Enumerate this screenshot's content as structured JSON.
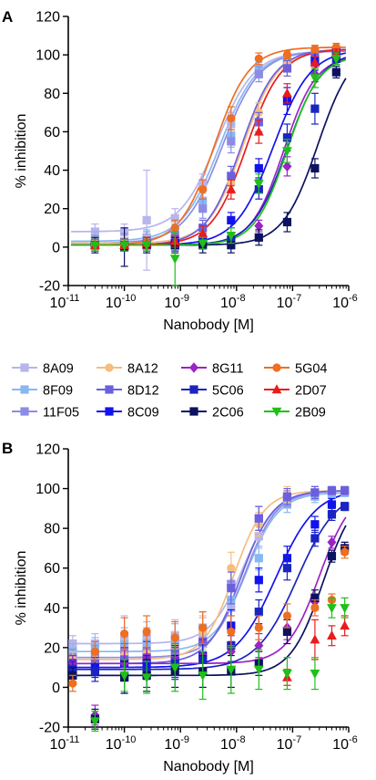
{
  "chart_data": [
    {
      "panel": "A",
      "type": "scatter",
      "xscale": "log",
      "xlim": [
        1e-11,
        1e-06
      ],
      "ylim": [
        -20,
        120
      ],
      "xlabel": "Nanobody [M]",
      "ylabel": "% inhibition",
      "xticks": [
        1e-11,
        1e-10,
        1e-09,
        1e-08,
        1e-07,
        1e-06
      ],
      "xtick_labels": [
        {
          "base": "10",
          "exp": "-11"
        },
        {
          "base": "10",
          "exp": "-10"
        },
        {
          "base": "10",
          "exp": "-9"
        },
        {
          "base": "10",
          "exp": "-8"
        },
        {
          "base": "10",
          "exp": "-7"
        },
        {
          "base": "10",
          "exp": "-6"
        }
      ],
      "yticks": [
        -20,
        0,
        20,
        40,
        60,
        80,
        100,
        120
      ],
      "x": [
        3e-11,
        1e-10,
        2.5e-10,
        8e-10,
        2.5e-09,
        8e-09,
        2.5e-08,
        8e-08,
        2.5e-07,
        6e-07
      ],
      "series": [
        {
          "name": "8A09",
          "ec50": 4.5e-09,
          "hill": 1.3,
          "bottom": 8,
          "top": 102,
          "values": [
            8,
            8,
            14,
            15,
            33,
            64,
            93,
            97,
            101,
            102
          ],
          "errors": [
            4,
            4,
            26,
            5,
            5,
            6,
            4,
            3,
            2,
            2
          ]
        },
        {
          "name": "8F09",
          "ec50": 5e-09,
          "hill": 1.3,
          "bottom": 3,
          "top": 102,
          "values": [
            4,
            2,
            5,
            8,
            24,
            58,
            92,
            97,
            100,
            102
          ],
          "errors": [
            4,
            4,
            4,
            4,
            5,
            6,
            4,
            3,
            2,
            2
          ]
        },
        {
          "name": "11F05",
          "ec50": 5.5e-09,
          "hill": 1.3,
          "bottom": 2,
          "top": 102,
          "values": [
            2,
            3,
            4,
            6,
            20,
            55,
            90,
            96,
            100,
            101
          ],
          "errors": [
            4,
            4,
            4,
            4,
            5,
            6,
            4,
            3,
            2,
            2
          ]
        },
        {
          "name": "8A12",
          "ec50": 1.3e-08,
          "hill": 1.4,
          "bottom": 2,
          "top": 103,
          "values": [
            2,
            2,
            3,
            4,
            8,
            33,
            70,
            95,
            100,
            102
          ],
          "errors": [
            3,
            3,
            3,
            3,
            4,
            5,
            5,
            4,
            2,
            2
          ]
        },
        {
          "name": "8D12",
          "ec50": 1.2e-08,
          "hill": 1.4,
          "bottom": 1,
          "top": 103,
          "values": [
            1,
            1,
            2,
            4,
            10,
            37,
            65,
            93,
            99,
            102
          ],
          "errors": [
            3,
            3,
            3,
            3,
            4,
            5,
            5,
            4,
            2,
            2
          ]
        },
        {
          "name": "8C09",
          "ec50": 4.5e-08,
          "hill": 1.3,
          "bottom": 1,
          "top": 103,
          "values": [
            1,
            1,
            1,
            2,
            4,
            14,
            41,
            76,
            97,
            102
          ],
          "errors": [
            3,
            3,
            3,
            3,
            3,
            4,
            5,
            7,
            5,
            2
          ]
        },
        {
          "name": "8G11",
          "ec50": 7e-08,
          "hill": 1.5,
          "bottom": 1,
          "top": 100,
          "values": [
            1,
            1,
            1,
            1,
            2,
            4,
            11,
            42,
            90,
            98
          ],
          "errors": [
            3,
            3,
            3,
            3,
            3,
            3,
            3,
            5,
            4,
            3
          ]
        },
        {
          "name": "5C06",
          "ec50": 8e-08,
          "hill": 1.4,
          "bottom": 1,
          "top": 102,
          "values": [
            1,
            1,
            1,
            1,
            2,
            4,
            30,
            57,
            72,
            98
          ],
          "errors": [
            3,
            3,
            3,
            3,
            3,
            3,
            5,
            7,
            8,
            3
          ]
        },
        {
          "name": "2C06",
          "ec50": 2.8e-07,
          "hill": 1.4,
          "bottom": 1,
          "top": 105,
          "values": [
            1,
            0,
            1,
            1,
            1,
            1,
            5,
            13,
            41,
            91
          ],
          "errors": [
            4,
            10,
            4,
            4,
            4,
            4,
            4,
            5,
            5,
            3
          ]
        },
        {
          "name": "5G04",
          "ec50": 4e-09,
          "hill": 1.4,
          "bottom": 1,
          "top": 104,
          "values": [
            1,
            1,
            2,
            10,
            30,
            67,
            98,
            100,
            103,
            104
          ],
          "errors": [
            3,
            3,
            3,
            4,
            5,
            6,
            3,
            2,
            2,
            2
          ]
        },
        {
          "name": "2D07",
          "ec50": 1.5e-08,
          "hill": 1.4,
          "bottom": 1,
          "top": 103,
          "values": [
            1,
            1,
            2,
            3,
            7,
            30,
            60,
            80,
            96,
            101
          ],
          "errors": [
            3,
            3,
            3,
            3,
            4,
            5,
            6,
            5,
            3,
            2
          ]
        },
        {
          "name": "2B09",
          "ec50": 8e-08,
          "hill": 1.5,
          "bottom": 1,
          "top": 100,
          "values": [
            1,
            1,
            1,
            -6,
            2,
            6,
            33,
            50,
            88,
            98
          ],
          "errors": [
            3,
            3,
            3,
            14,
            3,
            4,
            5,
            6,
            5,
            3
          ]
        }
      ]
    },
    {
      "panel": "B",
      "type": "scatter",
      "xscale": "log",
      "xlim": [
        1e-11,
        1e-06
      ],
      "ylim": [
        -20,
        120
      ],
      "xlabel": "Nanobody [M]",
      "ylabel": "% inhibition",
      "xticks": [
        1e-11,
        1e-10,
        1e-09,
        1e-08,
        1e-07,
        1e-06
      ],
      "xtick_labels": [
        {
          "base": "10",
          "exp": "-11"
        },
        {
          "base": "10",
          "exp": "-10"
        },
        {
          "base": "10",
          "exp": "-9"
        },
        {
          "base": "10",
          "exp": "-8"
        },
        {
          "base": "10",
          "exp": "-7"
        },
        {
          "base": "10",
          "exp": "-6"
        }
      ],
      "yticks": [
        -20,
        0,
        20,
        40,
        60,
        80,
        100,
        120
      ],
      "x": [
        1.2e-11,
        3e-11,
        1e-10,
        2.5e-10,
        8e-10,
        2.5e-09,
        8e-09,
        2.5e-08,
        8e-08,
        2.5e-07,
        5e-07,
        8.5e-07
      ],
      "series": [
        {
          "name": "8A09",
          "ec50": 1.3e-08,
          "hill": 1.5,
          "bottom": 22,
          "top": 98,
          "values": [
            22,
            22,
            24,
            25,
            26,
            27,
            40,
            76,
            95,
            98,
            98,
            98
          ],
          "errors": [
            4,
            5,
            12,
            8,
            8,
            8,
            8,
            6,
            4,
            3,
            2,
            2
          ]
        },
        {
          "name": "8F09",
          "ec50": 1.5e-08,
          "hill": 1.5,
          "bottom": 18,
          "top": 98,
          "values": [
            18,
            20,
            22,
            22,
            24,
            30,
            44,
            65,
            92,
            96,
            97,
            98
          ],
          "errors": [
            4,
            5,
            8,
            8,
            8,
            8,
            8,
            6,
            4,
            3,
            2,
            2
          ]
        },
        {
          "name": "11F05",
          "ec50": 1.4e-08,
          "hill": 1.5,
          "bottom": 15,
          "top": 99,
          "values": [
            15,
            16,
            18,
            18,
            20,
            22,
            52,
            85,
            95,
            98,
            99,
            99
          ],
          "errors": [
            4,
            5,
            8,
            8,
            8,
            8,
            8,
            6,
            4,
            3,
            2,
            2
          ]
        },
        {
          "name": "8A12",
          "ec50": 9e-09,
          "hill": 1.6,
          "bottom": 14,
          "top": 99,
          "values": [
            14,
            14,
            16,
            17,
            20,
            28,
            60,
            82,
            97,
            98,
            99,
            99
          ],
          "errors": [
            4,
            5,
            8,
            8,
            8,
            8,
            8,
            6,
            4,
            3,
            2,
            2
          ]
        },
        {
          "name": "8D12",
          "ec50": 1.2e-08,
          "hill": 1.5,
          "bottom": 12,
          "top": 99,
          "values": [
            12,
            12,
            14,
            15,
            17,
            23,
            50,
            85,
            96,
            98,
            99,
            99
          ],
          "errors": [
            4,
            5,
            8,
            8,
            8,
            8,
            8,
            6,
            4,
            3,
            2,
            2
          ]
        },
        {
          "name": "8C09",
          "ec50": 5e-08,
          "hill": 1.2,
          "bottom": 10,
          "top": 100,
          "values": [
            10,
            10,
            12,
            12,
            13,
            16,
            31,
            54,
            65,
            82,
            92,
            91
          ],
          "errors": [
            4,
            5,
            8,
            8,
            8,
            8,
            8,
            6,
            6,
            4,
            3,
            2
          ]
        },
        {
          "name": "8G11",
          "ec50": 3e-07,
          "hill": 1.5,
          "bottom": 12,
          "top": 100,
          "values": [
            12,
            -14,
            12,
            15,
            14,
            16,
            18,
            21,
            30,
            43,
            73,
            70
          ],
          "errors": [
            4,
            5,
            8,
            8,
            8,
            8,
            8,
            6,
            6,
            4,
            3,
            3
          ]
        },
        {
          "name": "5C06",
          "ec50": 1.2e-07,
          "hill": 1.2,
          "bottom": 9,
          "top": 100,
          "values": [
            9,
            8,
            5,
            8,
            12,
            14,
            21,
            38,
            60,
            75,
            87,
            91
          ],
          "errors": [
            4,
            5,
            8,
            8,
            8,
            8,
            8,
            6,
            6,
            4,
            3,
            2
          ]
        },
        {
          "name": "2C06",
          "ec50": 3.5e-07,
          "hill": 1.5,
          "bottom": 6,
          "top": 100,
          "values": [
            6,
            -16,
            5,
            6,
            8,
            8,
            8,
            12,
            28,
            45,
            66,
            70
          ],
          "errors": [
            4,
            5,
            8,
            8,
            8,
            8,
            8,
            6,
            6,
            4,
            3,
            3
          ]
        },
        {
          "name": "5G04",
          "ec50": null,
          "values": [
            2,
            18,
            27,
            28,
            25,
            30,
            28,
            30,
            36,
            40,
            44,
            68
          ],
          "errors": [
            4,
            5,
            8,
            8,
            8,
            8,
            8,
            6,
            6,
            4,
            3,
            3
          ]
        },
        {
          "name": "2D07",
          "ec50": null,
          "values": [
            null,
            null,
            null,
            null,
            null,
            null,
            null,
            null,
            5,
            24,
            26,
            31
          ],
          "errors": [
            0,
            0,
            0,
            0,
            0,
            0,
            0,
            0,
            4,
            10,
            5,
            5
          ]
        },
        {
          "name": "2B09",
          "ec50": null,
          "values": [
            null,
            -17,
            6,
            5,
            10,
            6,
            9,
            9,
            7,
            7,
            40,
            40
          ],
          "errors": [
            0,
            5,
            8,
            8,
            12,
            12,
            12,
            10,
            8,
            8,
            5,
            5
          ]
        }
      ]
    }
  ],
  "panels": [
    {
      "letter": "A"
    },
    {
      "letter": "B"
    }
  ],
  "legend": {
    "items": [
      {
        "name": "8A09",
        "color": "#b8b4ec",
        "marker": "square"
      },
      {
        "name": "8A12",
        "color": "#f5bd7e",
        "marker": "circle"
      },
      {
        "name": "8G11",
        "color": "#9a24c4",
        "marker": "diamond"
      },
      {
        "name": "5G04",
        "color": "#ee6e22",
        "marker": "circle"
      },
      {
        "name": "8F09",
        "color": "#88b8f0",
        "marker": "square"
      },
      {
        "name": "8D12",
        "color": "#6a60de",
        "marker": "square"
      },
      {
        "name": "5C06",
        "color": "#1a24c0",
        "marker": "square"
      },
      {
        "name": "2D07",
        "color": "#ea1c1c",
        "marker": "triangle-up"
      },
      {
        "name": "11F05",
        "color": "#8c8ce6",
        "marker": "square"
      },
      {
        "name": "8C09",
        "color": "#1212f0",
        "marker": "square"
      },
      {
        "name": "2C06",
        "color": "#0c1260",
        "marker": "square"
      },
      {
        "name": "2B09",
        "color": "#1ec018",
        "marker": "triangle-down"
      }
    ]
  },
  "series_colors": {
    "8A09": "#b8b4ec",
    "8F09": "#88b8f0",
    "11F05": "#8c8ce6",
    "8A12": "#f5bd7e",
    "8D12": "#6a60de",
    "8C09": "#1212f0",
    "8G11": "#9a24c4",
    "5C06": "#1a24c0",
    "2C06": "#0c1260",
    "5G04": "#ee6e22",
    "2D07": "#ea1c1c",
    "2B09": "#1ec018"
  },
  "series_markers": {
    "8A09": "square",
    "8F09": "square",
    "11F05": "square",
    "8A12": "circle",
    "8D12": "square",
    "8C09": "square",
    "8G11": "diamond",
    "5C06": "square",
    "2C06": "square",
    "5G04": "circle",
    "2D07": "triangle-up",
    "2B09": "triangle-down"
  }
}
